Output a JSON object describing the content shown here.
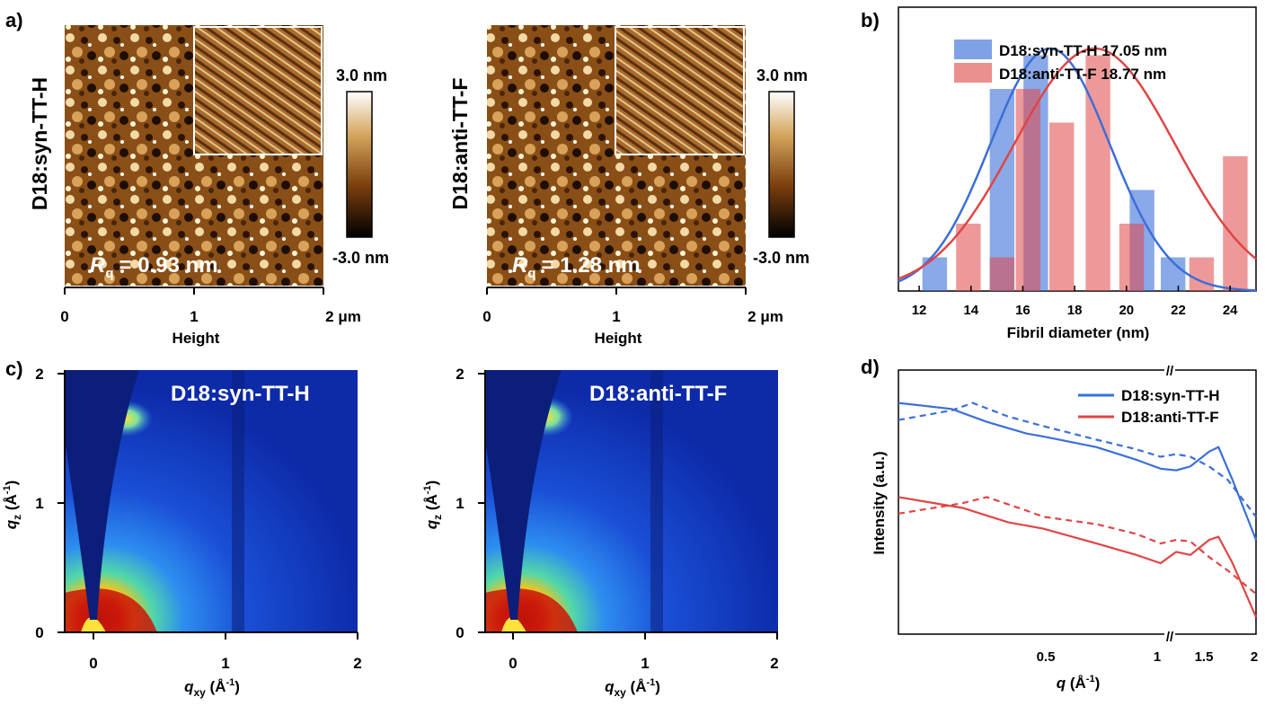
{
  "panel_labels": {
    "a": "a)",
    "b": "b)",
    "c": "c)",
    "d": "d)"
  },
  "colors": {
    "syn": "#3b6fd8",
    "anti": "#e04545"
  },
  "afm": {
    "images": [
      {
        "sample_label": "D18:syn-TT-H",
        "rq_value": "= 0.93 nm",
        "rq_symbol": "R",
        "rq_subscript": "q"
      },
      {
        "sample_label": "D18:anti-TT-F",
        "rq_value": "= 1.28 nm",
        "rq_symbol": "R",
        "rq_subscript": "q"
      }
    ],
    "colorbar": {
      "max": "3.0 nm",
      "min": "-3.0 nm"
    },
    "x_ticks": [
      "0",
      "1",
      "2 μm"
    ],
    "x_label": "Height"
  },
  "giwaxs": {
    "images": [
      {
        "title": "D18:syn-TT-H"
      },
      {
        "title": "D18:anti-TT-F"
      }
    ],
    "x_ticks": [
      "0",
      "1",
      "2"
    ],
    "y_ticks": [
      "0",
      "1",
      "2"
    ],
    "x_label": "q",
    "x_label_sub": "xy",
    "x_label_unit": " (Å",
    "y_label": "q",
    "y_label_sub": "z",
    "y_label_unit": " (Å"
  },
  "chart_data": [
    {
      "type": "bar",
      "panel": "b",
      "title": "",
      "xlabel": "Fibril diameter (nm)",
      "ylabel": "",
      "xlim": [
        11.2,
        25
      ],
      "ylim": [
        0,
        8
      ],
      "x_ticks": [
        "12",
        "14",
        "16",
        "18",
        "20",
        "22",
        "24"
      ],
      "legend": [
        "D18:syn-TT-H  17.05 nm",
        "D18:anti-TT-F  18.77 nm"
      ],
      "series": [
        {
          "name": "D18:syn-TT-H",
          "mean": 17.05,
          "bins": [
            12.6,
            15.2,
            16.5,
            20.6,
            21.8
          ],
          "values": [
            1,
            6,
            7,
            3,
            1
          ]
        },
        {
          "name": "D18:anti-TT-F",
          "mean": 18.77,
          "bins": [
            13.9,
            15.2,
            16.2,
            17.5,
            18.9,
            20.2,
            22.9,
            24.2
          ],
          "values": [
            2,
            1,
            6,
            5,
            7,
            2,
            1,
            4
          ]
        }
      ],
      "fits": [
        {
          "name": "D18:syn-TT-H",
          "peak": 7.2,
          "center": 17.05,
          "sigma": 2.3
        },
        {
          "name": "D18:anti-TT-F",
          "peak": 7.2,
          "center": 18.77,
          "sigma": 3.1
        }
      ]
    },
    {
      "type": "line",
      "panel": "d",
      "xlabel": "q",
      "xlabel_unit": " (Å",
      "ylabel": "Intensity (a.u.)",
      "x_ticks": [
        "0.5",
        "1",
        "1.5",
        "2"
      ],
      "axis_break": "//",
      "legend": [
        "D18:syn-TT-H",
        "D18:anti-TT-F"
      ],
      "scale": "log",
      "series": [
        {
          "name": "D18:syn-TT-H",
          "style": "solid",
          "x": [
            0.2,
            0.28,
            0.35,
            0.45,
            0.5,
            0.7,
            0.9,
            1.05,
            1.15,
            1.3,
            1.5,
            1.6,
            1.75,
            2.0
          ],
          "y": [
            30,
            25,
            17,
            12,
            11,
            8,
            5.5,
            4.2,
            4.0,
            4.5,
            7.0,
            8.0,
            3.0,
            0.5
          ]
        },
        {
          "name": "D18:syn-TT-H",
          "style": "dashed",
          "x": [
            0.2,
            0.28,
            0.32,
            0.4,
            0.5,
            0.7,
            0.9,
            1.05,
            1.15,
            1.3,
            1.5,
            1.7,
            2.0
          ],
          "y": [
            18,
            24,
            30,
            20,
            15,
            10,
            7.5,
            6.0,
            6.5,
            6.0,
            4.5,
            3.0,
            1.0
          ]
        },
        {
          "name": "D18:anti-TT-F",
          "style": "solid",
          "x": [
            0.2,
            0.3,
            0.4,
            0.5,
            0.7,
            0.9,
            1.05,
            1.15,
            1.3,
            1.5,
            1.6,
            1.75,
            2.0
          ],
          "y": [
            1.8,
            1.3,
            0.85,
            0.7,
            0.45,
            0.32,
            0.25,
            0.35,
            0.32,
            0.5,
            0.55,
            0.25,
            0.05
          ]
        },
        {
          "name": "D18:anti-TT-F",
          "style": "dashed",
          "x": [
            0.2,
            0.3,
            0.35,
            0.45,
            0.5,
            0.7,
            0.9,
            1.05,
            1.15,
            1.3,
            1.5,
            1.7,
            2.0
          ],
          "y": [
            1.1,
            1.5,
            1.8,
            1.2,
            1.0,
            0.8,
            0.6,
            0.45,
            0.5,
            0.48,
            0.3,
            0.2,
            0.1
          ]
        }
      ]
    }
  ]
}
